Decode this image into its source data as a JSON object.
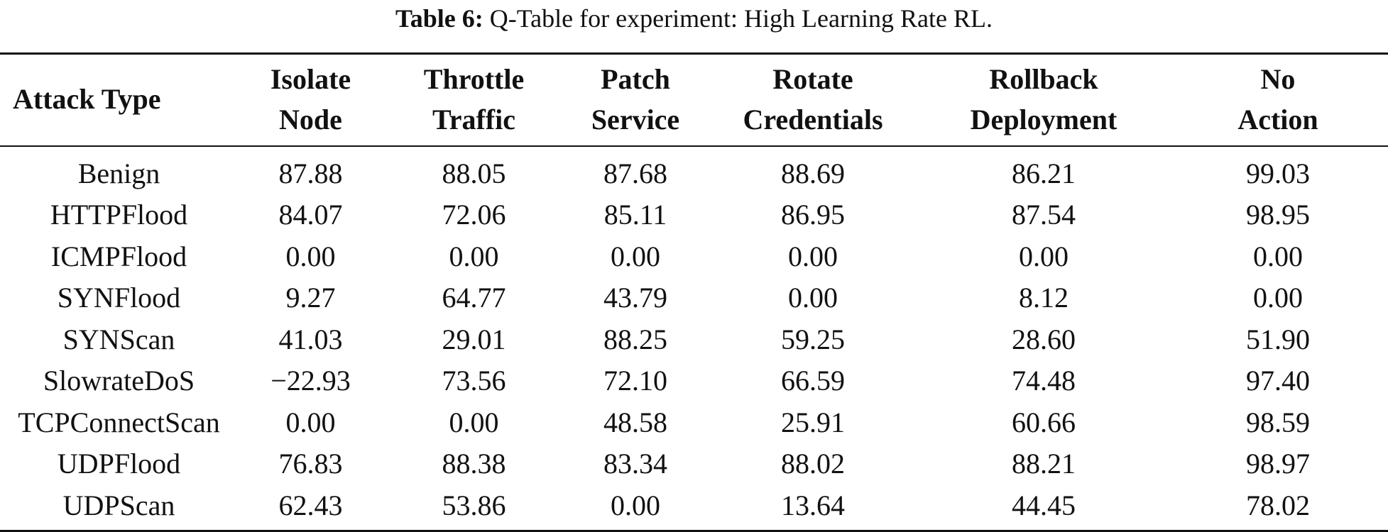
{
  "caption": {
    "label": "Table 6:",
    "text": "Q-Table for experiment: High Learning Rate RL."
  },
  "table": {
    "headers": [
      [
        "Attack Type"
      ],
      [
        "Isolate",
        "Node"
      ],
      [
        "Throttle",
        "Traffic"
      ],
      [
        "Patch",
        "Service"
      ],
      [
        "Rotate",
        "Credentials"
      ],
      [
        "Rollback",
        "Deployment"
      ],
      [
        "No",
        "Action"
      ]
    ],
    "rows": [
      [
        "Benign",
        "87.88",
        "88.05",
        "87.68",
        "88.69",
        "86.21",
        "99.03"
      ],
      [
        "HTTPFlood",
        "84.07",
        "72.06",
        "85.11",
        "86.95",
        "87.54",
        "98.95"
      ],
      [
        "ICMPFlood",
        "0.00",
        "0.00",
        "0.00",
        "0.00",
        "0.00",
        "0.00"
      ],
      [
        "SYNFlood",
        "9.27",
        "64.77",
        "43.79",
        "0.00",
        "8.12",
        "0.00"
      ],
      [
        "SYNScan",
        "41.03",
        "29.01",
        "88.25",
        "59.25",
        "28.60",
        "51.90"
      ],
      [
        "SlowrateDoS",
        "−22.93",
        "73.56",
        "72.10",
        "66.59",
        "74.48",
        "97.40"
      ],
      [
        "TCPConnectScan",
        "0.00",
        "0.00",
        "48.58",
        "25.91",
        "60.66",
        "98.59"
      ],
      [
        "UDPFlood",
        "76.83",
        "88.38",
        "83.34",
        "88.02",
        "88.21",
        "98.97"
      ],
      [
        "UDPScan",
        "62.43",
        "53.86",
        "0.00",
        "13.64",
        "44.45",
        "78.02"
      ]
    ]
  }
}
